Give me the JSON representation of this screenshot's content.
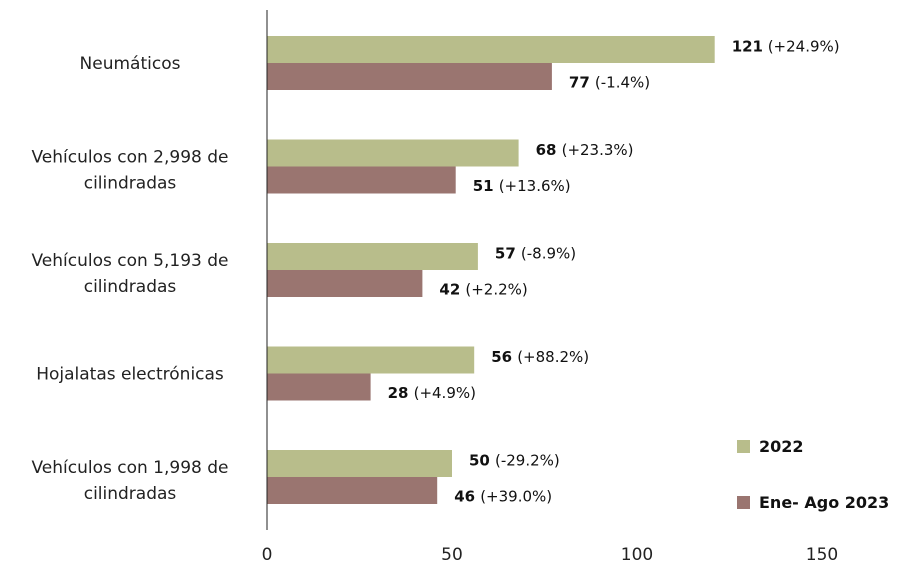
{
  "chart_data": {
    "type": "bar",
    "orientation": "horizontal",
    "categories": [
      "Neumáticos",
      "Vehículos con 2,998 de cilindradas",
      "Vehículos con 5,193 de cilindradas",
      "Hojalatas electrónicas",
      "Vehículos con 1,998 de cilindradas"
    ],
    "series": [
      {
        "name": "2022",
        "color": "#b8bd8b",
        "values": [
          121,
          68,
          57,
          56,
          50
        ],
        "changes": [
          "(+24.9%)",
          "(+23.3%)",
          "(-8.9%)",
          "(+88.2%)",
          "(-29.2%)"
        ]
      },
      {
        "name": "Ene- Ago 2023",
        "color": "#9a7570",
        "values": [
          77,
          51,
          42,
          28,
          46
        ],
        "changes": [
          "(-1.4%)",
          "(+13.6%)",
          "(+2.2%)",
          "(+4.9%)",
          "(+39.0%)"
        ]
      }
    ],
    "xlim": [
      0,
      150
    ],
    "xticks": [
      0,
      50,
      100,
      150
    ],
    "legend_position": "bottom-right",
    "grid": false
  }
}
